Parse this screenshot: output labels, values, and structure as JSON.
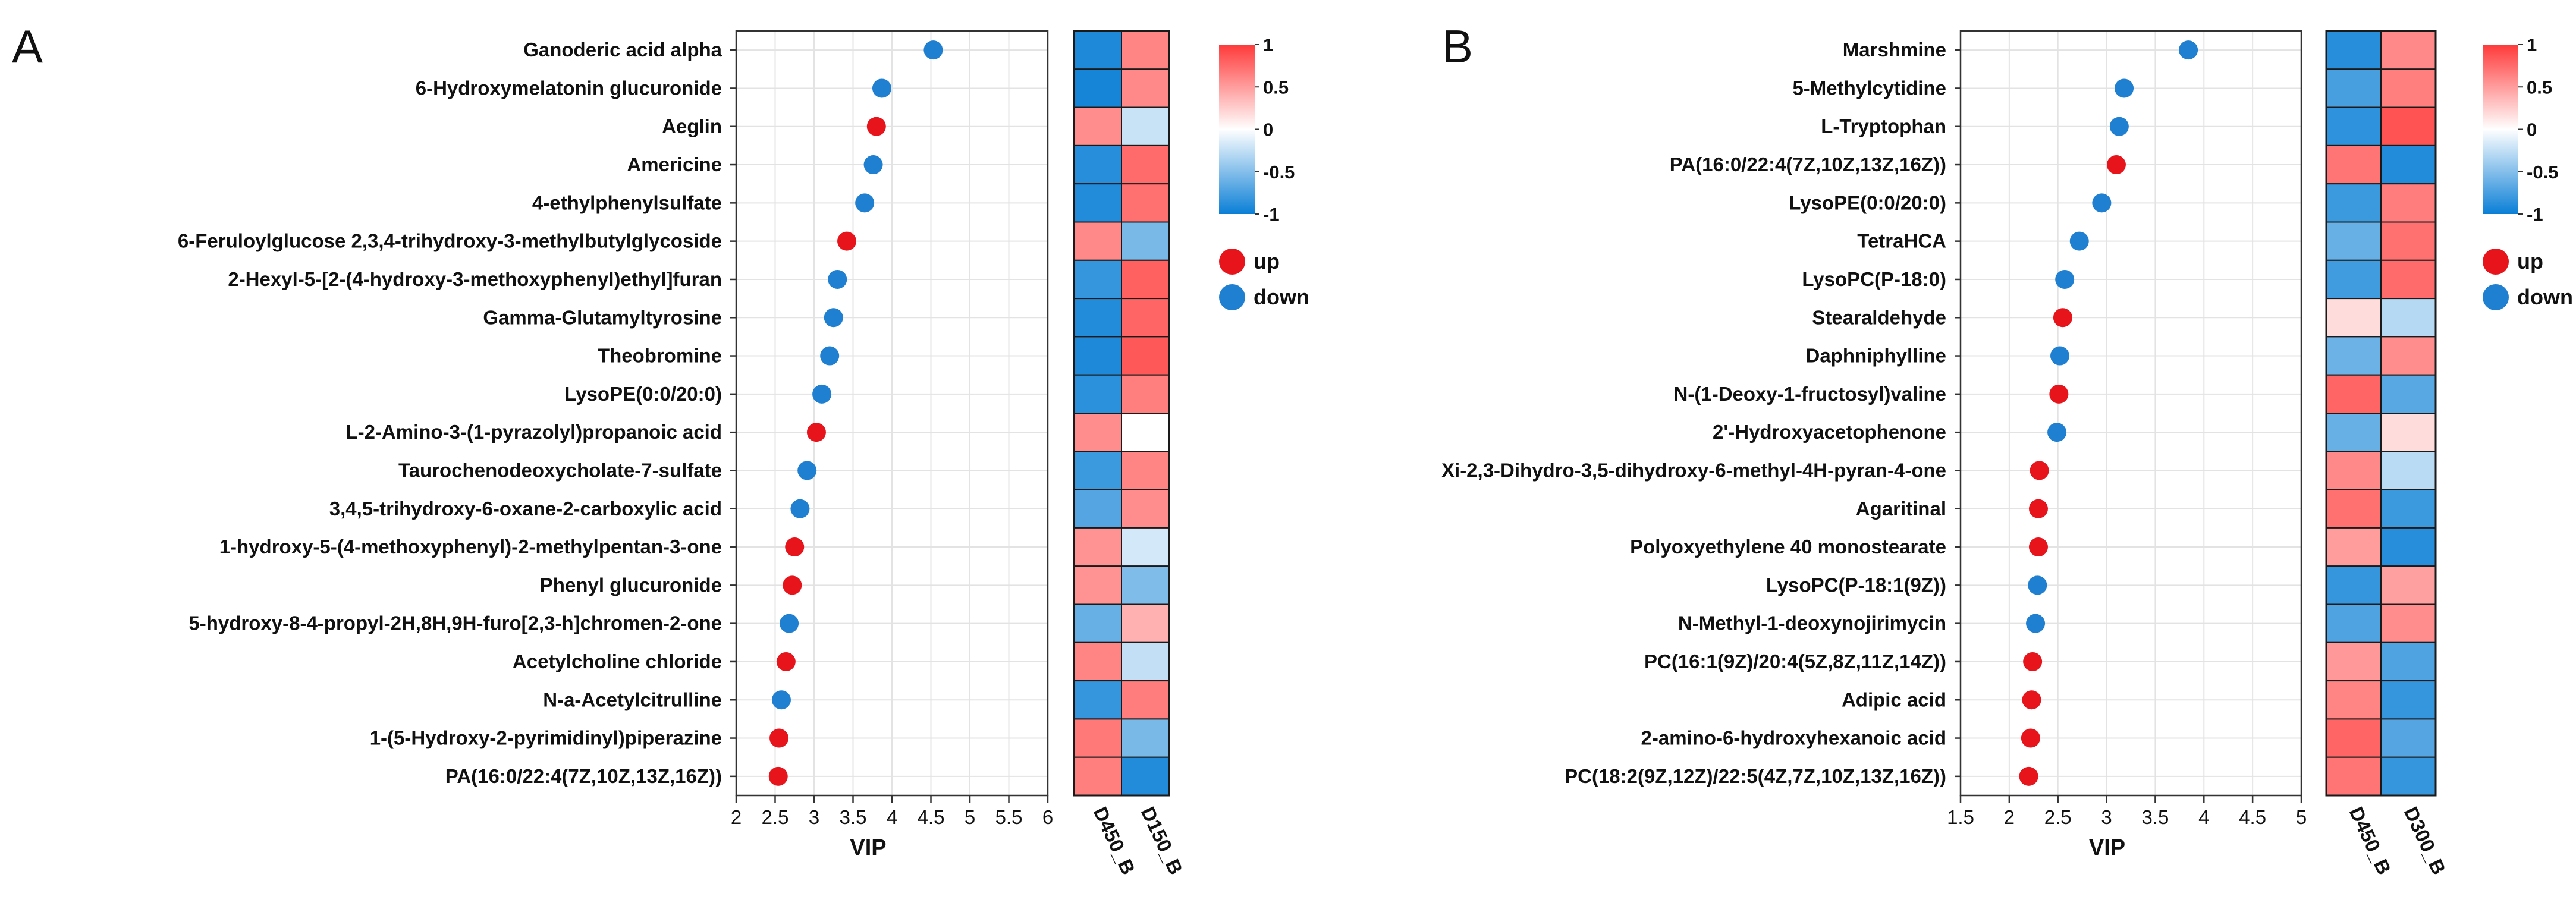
{
  "colors": {
    "up": "#e8141b",
    "down": "#1f7fd0"
  },
  "chart_data": [
    {
      "type": "scatter",
      "panel": "A",
      "xlabel": "VIP",
      "xlim": [
        2,
        6
      ],
      "xticks": [
        "2",
        "2.5",
        "3",
        "3.5",
        "4",
        "4.5",
        "5",
        "5.5",
        "6"
      ],
      "grid": true,
      "legend": {
        "placement": "right",
        "entries": [
          {
            "label": "up",
            "color": "#e8141b"
          },
          {
            "label": "down",
            "color": "#1f7fd0"
          }
        ]
      },
      "points": [
        {
          "label": "Ganoderic acid alpha",
          "vip": 4.53,
          "direction": "down"
        },
        {
          "label": "6-Hydroxymelatonin glucuronide",
          "vip": 3.87,
          "direction": "down"
        },
        {
          "label": "Aeglin",
          "vip": 3.8,
          "direction": "up"
        },
        {
          "label": "Americine",
          "vip": 3.76,
          "direction": "down"
        },
        {
          "label": "4-ethylphenylsulfate",
          "vip": 3.65,
          "direction": "down"
        },
        {
          "label": "6-Feruloylglucose 2,3,4-trihydroxy-3-methylbutylglycoside",
          "vip": 3.42,
          "direction": "up"
        },
        {
          "label": "2-Hexyl-5-[2-(4-hydroxy-3-methoxyphenyl)ethyl]furan",
          "vip": 3.3,
          "direction": "down"
        },
        {
          "label": "Gamma-Glutamyltyrosine",
          "vip": 3.25,
          "direction": "down"
        },
        {
          "label": "Theobromine",
          "vip": 3.2,
          "direction": "down"
        },
        {
          "label": "LysoPE(0:0/20:0)",
          "vip": 3.1,
          "direction": "down"
        },
        {
          "label": "L-2-Amino-3-(1-pyrazolyl)propanoic acid",
          "vip": 3.03,
          "direction": "up"
        },
        {
          "label": "Taurochenodeoxycholate-7-sulfate",
          "vip": 2.91,
          "direction": "down"
        },
        {
          "label": "3,4,5-trihydroxy-6-oxane-2-carboxylic acid",
          "vip": 2.82,
          "direction": "down"
        },
        {
          "label": "1-hydroxy-5-(4-methoxyphenyl)-2-methylpentan-3-one",
          "vip": 2.75,
          "direction": "up"
        },
        {
          "label": "Phenyl glucuronide",
          "vip": 2.72,
          "direction": "up"
        },
        {
          "label": "5-hydroxy-8-4-propyl-2H,8H,9H-furo[2,3-h]chromen-2-one",
          "vip": 2.68,
          "direction": "down"
        },
        {
          "label": "Acetylcholine chloride",
          "vip": 2.64,
          "direction": "up"
        },
        {
          "label": "N-a-Acetylcitrulline",
          "vip": 2.58,
          "direction": "down"
        },
        {
          "label": "1-(5-Hydroxy-2-pyrimidinyl)piperazine",
          "vip": 2.55,
          "direction": "up"
        },
        {
          "label": "PA(16:0/22:4(7Z,10Z,13Z,16Z))",
          "vip": 2.54,
          "direction": "up"
        }
      ],
      "heatmap": {
        "columns": [
          "D450_B",
          "D150_B"
        ],
        "values": [
          [
            -0.92,
            0.62
          ],
          [
            -0.95,
            0.6
          ],
          [
            0.58,
            -0.22
          ],
          [
            -0.88,
            0.75
          ],
          [
            -0.9,
            0.72
          ],
          [
            0.6,
            -0.55
          ],
          [
            -0.82,
            0.8
          ],
          [
            -0.9,
            0.78
          ],
          [
            -0.92,
            0.85
          ],
          [
            -0.86,
            0.65
          ],
          [
            0.58,
            0.0
          ],
          [
            -0.8,
            0.62
          ],
          [
            -0.7,
            0.58
          ],
          [
            0.55,
            -0.18
          ],
          [
            0.55,
            -0.52
          ],
          [
            -0.62,
            0.4
          ],
          [
            0.62,
            -0.25
          ],
          [
            -0.82,
            0.66
          ],
          [
            0.68,
            -0.55
          ],
          [
            0.65,
            -0.9
          ]
        ]
      },
      "colorbar": {
        "range": [
          -1,
          1
        ],
        "ticks": [
          "1",
          "0.5",
          "0",
          "-0.5",
          "-1"
        ]
      }
    },
    {
      "type": "scatter",
      "panel": "B",
      "xlabel": "VIP",
      "xlim": [
        1.5,
        5
      ],
      "xticks": [
        "1.5",
        "2",
        "2.5",
        "3",
        "3.5",
        "4",
        "4.5",
        "5"
      ],
      "grid": true,
      "legend": {
        "placement": "right",
        "entries": [
          {
            "label": "up",
            "color": "#e8141b"
          },
          {
            "label": "down",
            "color": "#1f7fd0"
          }
        ]
      },
      "points": [
        {
          "label": "Marshmine",
          "vip": 3.84,
          "direction": "down"
        },
        {
          "label": "5-Methylcytidine",
          "vip": 3.18,
          "direction": "down"
        },
        {
          "label": "L-Tryptophan",
          "vip": 3.13,
          "direction": "down"
        },
        {
          "label": "PA(16:0/22:4(7Z,10Z,13Z,16Z))",
          "vip": 3.1,
          "direction": "up"
        },
        {
          "label": "LysoPE(0:0/20:0)",
          "vip": 2.95,
          "direction": "down"
        },
        {
          "label": "TetraHCA",
          "vip": 2.72,
          "direction": "down"
        },
        {
          "label": "LysoPC(P-18:0)",
          "vip": 2.57,
          "direction": "down"
        },
        {
          "label": "Stearaldehyde",
          "vip": 2.55,
          "direction": "up"
        },
        {
          "label": "Daphniphylline",
          "vip": 2.52,
          "direction": "down"
        },
        {
          "label": "N-(1-Deoxy-1-fructosyl)valine",
          "vip": 2.51,
          "direction": "up"
        },
        {
          "label": "2'-Hydroxyacetophenone",
          "vip": 2.49,
          "direction": "down"
        },
        {
          "label": "Xi-2,3-Dihydro-3,5-dihydroxy-6-methyl-4H-pyran-4-one",
          "vip": 2.31,
          "direction": "up"
        },
        {
          "label": "Agaritinal",
          "vip": 2.3,
          "direction": "up"
        },
        {
          "label": "Polyoxyethylene 40 monostearate",
          "vip": 2.3,
          "direction": "up"
        },
        {
          "label": "LysoPC(P-18:1(9Z))",
          "vip": 2.29,
          "direction": "down"
        },
        {
          "label": "N-Methyl-1-deoxynojirimycin",
          "vip": 2.27,
          "direction": "down"
        },
        {
          "label": "PC(16:1(9Z)/20:4(5Z,8Z,11Z,14Z))",
          "vip": 2.24,
          "direction": "up"
        },
        {
          "label": "Adipic acid",
          "vip": 2.23,
          "direction": "up"
        },
        {
          "label": "2-amino-6-hydroxyhexanoic acid",
          "vip": 2.22,
          "direction": "up"
        },
        {
          "label": "PC(18:2(9Z,12Z)/22:5(4Z,7Z,10Z,13Z,16Z))",
          "vip": 2.2,
          "direction": "up"
        }
      ],
      "heatmap": {
        "columns": [
          "D450_B",
          "D300_B"
        ],
        "values": [
          [
            -0.88,
            0.6
          ],
          [
            -0.75,
            0.65
          ],
          [
            -0.85,
            0.88
          ],
          [
            0.7,
            -0.9
          ],
          [
            -0.8,
            0.66
          ],
          [
            -0.62,
            0.72
          ],
          [
            -0.78,
            0.75
          ],
          [
            0.18,
            -0.3
          ],
          [
            -0.6,
            0.58
          ],
          [
            0.78,
            -0.68
          ],
          [
            -0.62,
            0.18
          ],
          [
            0.6,
            -0.28
          ],
          [
            0.72,
            -0.8
          ],
          [
            0.5,
            -0.88
          ],
          [
            -0.82,
            0.48
          ],
          [
            -0.72,
            0.58
          ],
          [
            0.52,
            -0.72
          ],
          [
            0.62,
            -0.82
          ],
          [
            0.78,
            -0.7
          ],
          [
            0.7,
            -0.82
          ]
        ]
      },
      "colorbar": {
        "range": [
          -1,
          1
        ],
        "ticks": [
          "1",
          "0.5",
          "0",
          "-0.5",
          "-1"
        ]
      }
    }
  ]
}
